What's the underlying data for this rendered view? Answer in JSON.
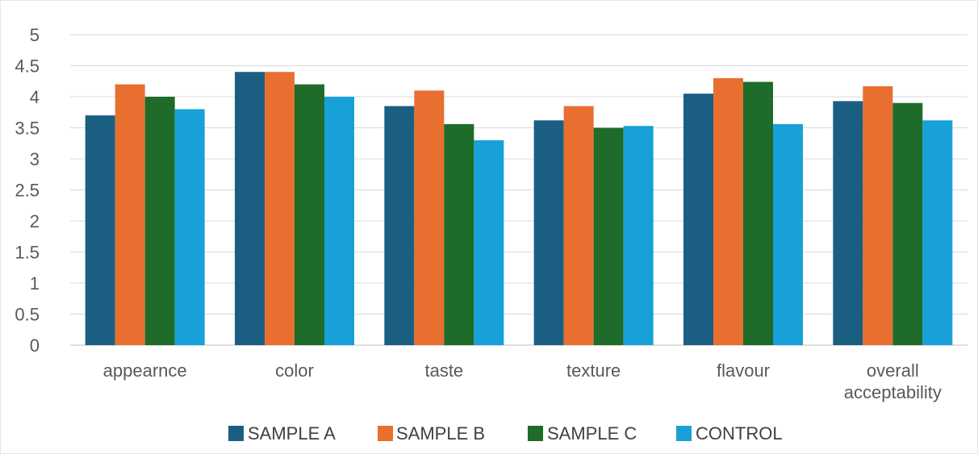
{
  "chart_data": {
    "type": "bar",
    "title": "",
    "xlabel": "",
    "ylabel": "",
    "ylim": [
      0,
      5
    ],
    "yticks": [
      "0",
      "0.5",
      "1",
      "1.5",
      "2",
      "2.5",
      "3",
      "3.5",
      "4",
      "4.5",
      "5"
    ],
    "grid": true,
    "legend_position": "bottom",
    "categories": [
      [
        "appearnce"
      ],
      [
        "color"
      ],
      [
        "taste"
      ],
      [
        "texture"
      ],
      [
        "flavour"
      ],
      [
        "overall",
        "acceptability"
      ]
    ],
    "series": [
      {
        "name": "SAMPLE A",
        "color": "#1a5f82",
        "values": [
          3.7,
          4.4,
          3.85,
          3.62,
          4.05,
          3.93
        ]
      },
      {
        "name": "SAMPLE B",
        "color": "#e86f30",
        "values": [
          4.2,
          4.4,
          4.1,
          3.85,
          4.3,
          4.17
        ]
      },
      {
        "name": "SAMPLE C",
        "color": "#1e6b2a",
        "values": [
          4.0,
          4.2,
          3.56,
          3.5,
          4.24,
          3.9
        ]
      },
      {
        "name": "CONTROL",
        "color": "#18a0d8",
        "values": [
          3.8,
          4.0,
          3.3,
          3.53,
          3.56,
          3.62
        ]
      }
    ]
  }
}
